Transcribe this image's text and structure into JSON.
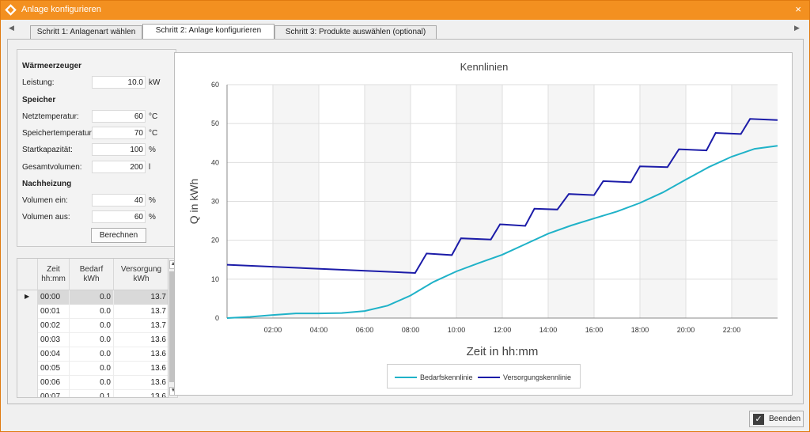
{
  "window": {
    "title": "Anlage konfigurieren",
    "close_glyph": "×"
  },
  "tabs": {
    "left_arrow": "◀",
    "right_arrow": "▶",
    "items": [
      {
        "label": "Schritt 1: Anlagenart wählen"
      },
      {
        "label": "Schritt 2: Anlage konfigurieren"
      },
      {
        "label": "Schritt 3: Produkte auswählen (optional)"
      }
    ]
  },
  "form": {
    "waerme": {
      "heading": "Wärmeerzeuger",
      "leistung": {
        "label": "Leistung:",
        "value": "10.0",
        "unit": "kW"
      }
    },
    "speicher": {
      "heading": "Speicher",
      "netztemperatur": {
        "label": "Netztemperatur:",
        "value": "60",
        "unit": "°C"
      },
      "speichertemperatur": {
        "label": "Speichertemperatur:",
        "value": "70",
        "unit": "°C"
      },
      "startkapazitaet": {
        "label": "Startkapazität:",
        "value": "100",
        "unit": "%"
      },
      "gesamtvolumen": {
        "label": "Gesamtvolumen:",
        "value": "200",
        "unit": "l"
      }
    },
    "nachheizung": {
      "heading": "Nachheizung",
      "volumen_ein": {
        "label": "Volumen ein:",
        "value": "40",
        "unit": "%"
      },
      "volumen_aus": {
        "label": "Volumen aus:",
        "value": "60",
        "unit": "%"
      }
    },
    "calc_button": "Berechnen"
  },
  "table": {
    "headers": {
      "zeit": [
        "Zeit",
        "hh:mm"
      ],
      "bedarf": [
        "Bedarf",
        "kWh"
      ],
      "versorgung": [
        "Versorgung",
        "kWh"
      ]
    },
    "selected_marker": "▶",
    "rows": [
      {
        "zeit": "00:00",
        "bedarf": "0.0",
        "versorgung": "13.7"
      },
      {
        "zeit": "00:01",
        "bedarf": "0.0",
        "versorgung": "13.7"
      },
      {
        "zeit": "00:02",
        "bedarf": "0.0",
        "versorgung": "13.7"
      },
      {
        "zeit": "00:03",
        "bedarf": "0.0",
        "versorgung": "13.6"
      },
      {
        "zeit": "00:04",
        "bedarf": "0.0",
        "versorgung": "13.6"
      },
      {
        "zeit": "00:05",
        "bedarf": "0.0",
        "versorgung": "13.6"
      },
      {
        "zeit": "00:06",
        "bedarf": "0.0",
        "versorgung": "13.6"
      },
      {
        "zeit": "00:07",
        "bedarf": "0.1",
        "versorgung": "13.6"
      }
    ],
    "scroll_up": "▲",
    "scroll_down": "▼"
  },
  "chart_data": {
    "type": "line",
    "title": "Kennlinien",
    "xlabel": "Zeit in hh:mm",
    "ylabel": "Q in kWh",
    "xlim": [
      0,
      24
    ],
    "ylim": [
      0,
      60
    ],
    "x_ticks": [
      "02:00",
      "04:00",
      "06:00",
      "08:00",
      "10:00",
      "12:00",
      "14:00",
      "16:00",
      "18:00",
      "20:00",
      "22:00"
    ],
    "y_ticks": [
      0,
      10,
      20,
      30,
      40,
      50,
      60
    ],
    "grid": true,
    "legend": "bottom",
    "series": [
      {
        "name": "Bedarfskennlinie",
        "color": "#1fb2c8",
        "points": [
          [
            0,
            0
          ],
          [
            1,
            0.3
          ],
          [
            2,
            0.8
          ],
          [
            3,
            1.2
          ],
          [
            4,
            1.2
          ],
          [
            5,
            1.3
          ],
          [
            6,
            1.8
          ],
          [
            7,
            3.2
          ],
          [
            8,
            5.8
          ],
          [
            9,
            9.3
          ],
          [
            10,
            12
          ],
          [
            11,
            14.2
          ],
          [
            12,
            16.3
          ],
          [
            13,
            19
          ],
          [
            14,
            21.7
          ],
          [
            15,
            23.8
          ],
          [
            16,
            25.6
          ],
          [
            17,
            27.4
          ],
          [
            18,
            29.6
          ],
          [
            19,
            32.3
          ],
          [
            20,
            35.6
          ],
          [
            21,
            38.8
          ],
          [
            22,
            41.5
          ],
          [
            23,
            43.5
          ],
          [
            24,
            44.3
          ]
        ]
      },
      {
        "name": "Versorgungskennlinie",
        "color": "#1c1ca8",
        "points": [
          [
            0,
            13.7
          ],
          [
            8.2,
            11.6
          ],
          [
            8.7,
            16.6
          ],
          [
            9.8,
            16.2
          ],
          [
            10.2,
            20.5
          ],
          [
            11.5,
            20.2
          ],
          [
            11.9,
            24.1
          ],
          [
            13,
            23.7
          ],
          [
            13.4,
            28.1
          ],
          [
            14.4,
            27.9
          ],
          [
            14.9,
            31.9
          ],
          [
            16,
            31.6
          ],
          [
            16.4,
            35.2
          ],
          [
            17.6,
            34.9
          ],
          [
            18,
            39
          ],
          [
            19.2,
            38.8
          ],
          [
            19.7,
            43.4
          ],
          [
            20.9,
            43.1
          ],
          [
            21.3,
            47.6
          ],
          [
            22.4,
            47.3
          ],
          [
            22.8,
            51.2
          ],
          [
            24,
            50.9
          ]
        ]
      }
    ]
  },
  "footer": {
    "button_label": "Beenden",
    "check_glyph": "✓"
  }
}
